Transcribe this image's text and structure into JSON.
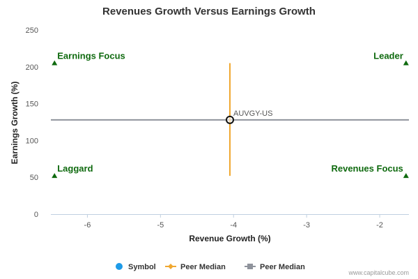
{
  "chart_data": {
    "type": "scatter",
    "title": "Revenues Growth Versus Earnings Growth",
    "xlabel": "Revenue Growth (%)",
    "ylabel": "Earnings Growth (%)",
    "xlim": [
      -6.5,
      -1.6
    ],
    "ylim": [
      0,
      250
    ],
    "x_ticks": [
      -6,
      -5,
      -4,
      -3,
      -2
    ],
    "y_ticks": [
      0,
      50,
      100,
      150,
      200,
      250
    ],
    "grid": false,
    "quadrants": [
      {
        "label": "Earnings Focus",
        "marker_x": -6.45,
        "marker_y": 205
      },
      {
        "label": "Leader",
        "marker_x": -1.64,
        "marker_y": 205
      },
      {
        "label": "Laggard",
        "marker_x": -6.45,
        "marker_y": 52
      },
      {
        "label": "Revenues Focus",
        "marker_x": -1.64,
        "marker_y": 52
      }
    ],
    "points": [
      {
        "label": "AUVGY-US",
        "x": -4.05,
        "y": 128
      }
    ],
    "peer_median_revenue": {
      "x": -4.05,
      "y_range": [
        52,
        205
      ]
    },
    "peer_median_earnings": {
      "y": 128,
      "x_range": [
        -6.5,
        -1.6
      ]
    },
    "legend": {
      "placement": "bottom",
      "items": [
        {
          "name": "Symbol",
          "color": "#1e9be8",
          "marker": "circle"
        },
        {
          "name": "Peer Median",
          "color": "#f0a830",
          "marker": "diamond-line"
        },
        {
          "name": "Peer Median",
          "color": "#8f939c",
          "marker": "square-line"
        }
      ]
    },
    "colors": {
      "quadrant_marker": "#0f6a0f",
      "quadrant_text": "#0f6a0f",
      "revenue_median_line": "#f0a830",
      "earnings_median_line": "#8f939c",
      "x_axis_line": "#c0d0e0"
    },
    "credit": "www.capitalcube.com"
  }
}
